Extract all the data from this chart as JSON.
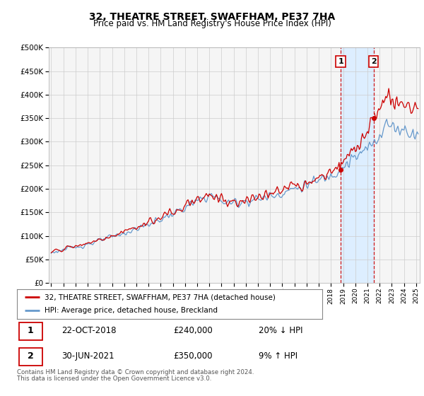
{
  "title": "32, THEATRE STREET, SWAFFHAM, PE37 7HA",
  "subtitle": "Price paid vs. HM Land Registry's House Price Index (HPI)",
  "legend_line1": "32, THEATRE STREET, SWAFFHAM, PE37 7HA (detached house)",
  "legend_line2": "HPI: Average price, detached house, Breckland",
  "annotation1_date": "22-OCT-2018",
  "annotation1_price": "£240,000",
  "annotation1_hpi": "20% ↓ HPI",
  "annotation1_year": 2018.8,
  "annotation1_value": 240000,
  "annotation2_date": "30-JUN-2021",
  "annotation2_price": "£350,000",
  "annotation2_hpi": "9% ↑ HPI",
  "annotation2_year": 2021.5,
  "annotation2_value": 350000,
  "line_color_property": "#cc0000",
  "line_color_hpi": "#6699cc",
  "vline_color": "#cc0000",
  "highlight_color": "#ddeeff",
  "table_border_color": "#cc0000",
  "footer": "Contains HM Land Registry data © Crown copyright and database right 2024.\nThis data is licensed under the Open Government Licence v3.0.",
  "ylim": [
    0,
    500000
  ],
  "yticks": [
    0,
    50000,
    100000,
    150000,
    200000,
    250000,
    300000,
    350000,
    400000,
    450000,
    500000
  ],
  "xlim_start": 1994.8,
  "xlim_end": 2025.3,
  "background_color": "#ffffff",
  "plot_bg_color": "#f5f5f5"
}
